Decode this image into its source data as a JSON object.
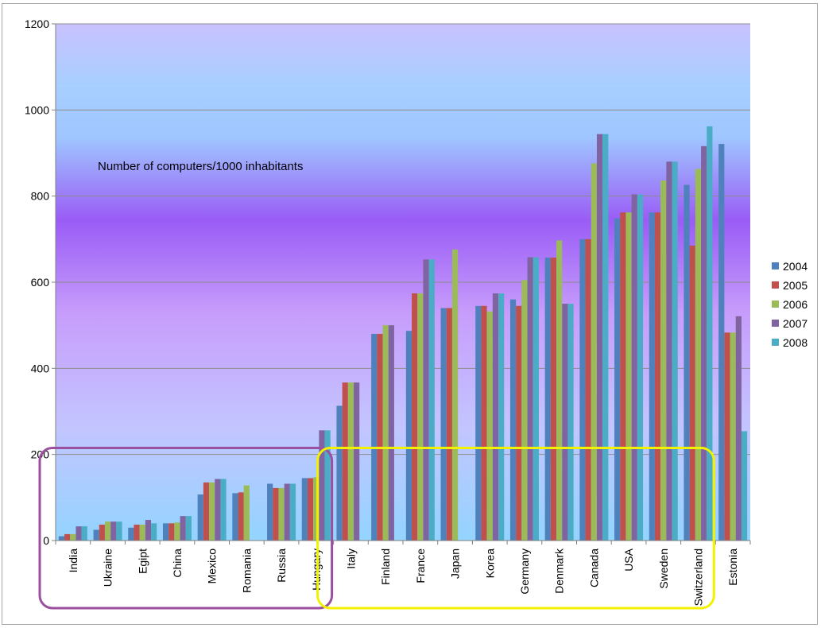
{
  "chart_data": {
    "type": "bar",
    "title": "",
    "annotation": "Number of computers/1000 inhabitants",
    "xlabel": "",
    "ylabel": "",
    "ylim": [
      0,
      1200
    ],
    "yticks": [
      0,
      200,
      400,
      600,
      800,
      1000,
      1200
    ],
    "grid": true,
    "legend_position": "right",
    "categories": [
      "India",
      "Ukraine",
      "Egipt",
      "China",
      "Mexico",
      "Romania",
      "Russia",
      "Hungary",
      "Italy",
      "Finland",
      "France",
      "Japan",
      "Korea",
      "Germany",
      "Denmark",
      "Canada",
      "USA",
      "Sweden",
      "Switzerland",
      "Estonia"
    ],
    "series": [
      {
        "name": "2004",
        "color": "#4f81bd",
        "values": [
          10,
          25,
          30,
          40,
          107,
          110,
          132,
          145,
          313,
          480,
          487,
          540,
          545,
          560,
          657,
          700,
          748,
          762,
          826,
          921
        ]
      },
      {
        "name": "2005",
        "color": "#c0504d",
        "values": [
          15,
          37,
          37,
          40,
          135,
          112,
          122,
          145,
          367,
          480,
          574,
          540,
          545,
          545,
          657,
          700,
          762,
          762,
          685,
          483
        ]
      },
      {
        "name": "2006",
        "color": "#9bbb59",
        "values": [
          15,
          44,
          37,
          42,
          135,
          128,
          122,
          147,
          367,
          500,
          574,
          676,
          532,
          605,
          697,
          876,
          762,
          836,
          863,
          483
        ]
      },
      {
        "name": "2007",
        "color": "#8064a2",
        "values": [
          33,
          44,
          48,
          57,
          143,
          0,
          132,
          256,
          367,
          500,
          653,
          0,
          574,
          658,
          550,
          944,
          804,
          880,
          916,
          521
        ]
      },
      {
        "name": "2008",
        "color": "#4bacc6",
        "values": [
          33,
          44,
          40,
          57,
          143,
          0,
          132,
          256,
          0,
          0,
          653,
          0,
          574,
          658,
          550,
          944,
          804,
          880,
          962,
          254
        ]
      }
    ],
    "highlight_groups": [
      {
        "color": "#9b4f9f",
        "from": "India",
        "to": "Hungary"
      },
      {
        "color": "#f2f200",
        "from": "Italy",
        "to": "Switzerland"
      }
    ]
  }
}
